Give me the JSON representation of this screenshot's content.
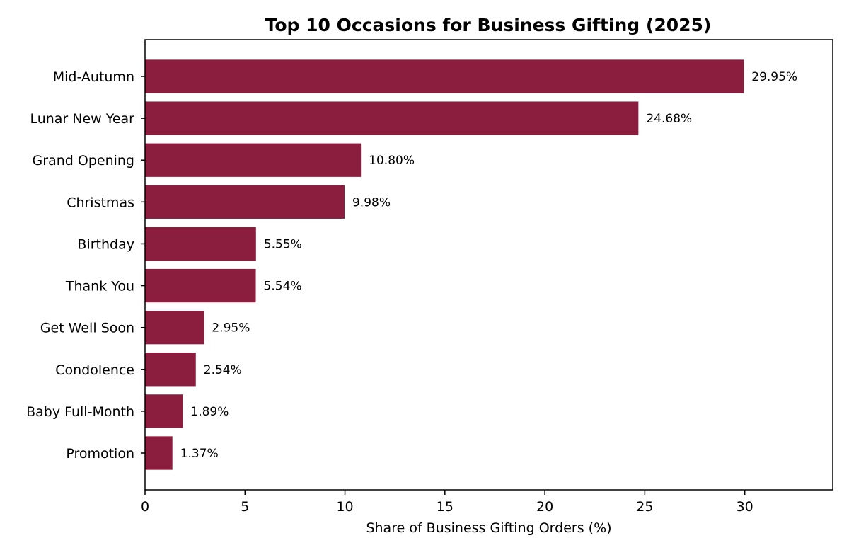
{
  "chart_data": {
    "type": "bar",
    "orientation": "horizontal",
    "title": "Top 10 Occasions for Business Gifting (2025)",
    "xlabel": "Share of Business Gifting Orders (%)",
    "ylabel": "",
    "xlim": [
      0,
      34.4
    ],
    "xticks": [
      0,
      5,
      10,
      15,
      20,
      25,
      30
    ],
    "categories": [
      "Mid-Autumn",
      "Lunar New Year",
      "Grand Opening",
      "Christmas",
      "Birthday",
      "Thank You",
      "Get Well Soon",
      "Condolence",
      "Baby Full-Month",
      "Promotion"
    ],
    "values": [
      29.95,
      24.68,
      10.8,
      9.98,
      5.55,
      5.54,
      2.95,
      2.54,
      1.89,
      1.37
    ],
    "data_labels": [
      "29.95%",
      "24.68%",
      "10.80%",
      "9.98%",
      "5.55%",
      "5.54%",
      "2.95%",
      "2.54%",
      "1.89%",
      "1.37%"
    ],
    "bar_color": "#8b1e3f",
    "grid": false,
    "legend": "none"
  }
}
